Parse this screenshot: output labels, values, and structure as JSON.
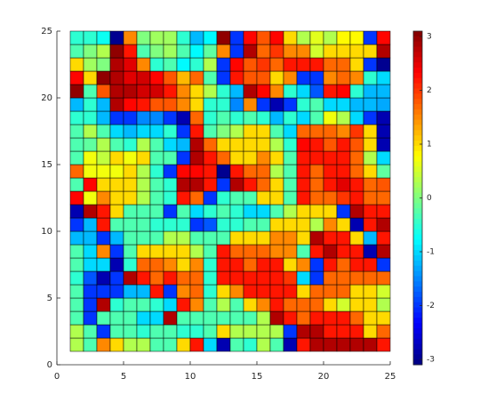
{
  "chart_data": {
    "type": "heatmap",
    "colormap": "jet",
    "edge_color": "#000000",
    "x": [
      1,
      2,
      3,
      4,
      5,
      6,
      7,
      8,
      9,
      10,
      11,
      12,
      13,
      14,
      15,
      16,
      17,
      18,
      19,
      20,
      21,
      22,
      23,
      24,
      25
    ],
    "y": [
      1,
      2,
      3,
      4,
      5,
      6,
      7,
      8,
      9,
      10,
      11,
      12,
      13,
      14,
      15,
      16,
      17,
      18,
      19,
      20,
      21,
      22,
      23,
      24,
      25
    ],
    "z": [
      [
        0.3,
        -0.3,
        1.5,
        1,
        0.3,
        0.3,
        -0.3,
        -0.3,
        1,
        2.2,
        -1,
        -2.8,
        -0.3,
        -0.5,
        0.3,
        -0.3,
        -2.8,
        2.2,
        2.8,
        2.8,
        2.8,
        2.8,
        2.8,
        2.2
      ],
      [
        0.3,
        -0.3,
        -2,
        -0.3,
        -0.3,
        -0.5,
        -0.3,
        -0.3,
        -0.5,
        -0.5,
        -0.3,
        1,
        0.3,
        0.3,
        0.3,
        0.3,
        -2,
        2.8,
        2.8,
        2.2,
        2.2,
        2.2,
        1,
        1.7
      ],
      [
        -0.3,
        -2,
        -0.3,
        -0.3,
        -0.3,
        -1,
        -1,
        2.8,
        -0.3,
        -0.3,
        -0.3,
        -0.3,
        -0.3,
        -0.3,
        0.3,
        2.8,
        2.2,
        1.7,
        2.2,
        2.2,
        2.2,
        1.7,
        1,
        1
      ],
      [
        -0.3,
        -2,
        2.8,
        -0.5,
        -0.3,
        -0.3,
        -0.5,
        -1,
        2.2,
        1.5,
        -0.3,
        0.3,
        -0.3,
        1,
        1.5,
        2.2,
        1.7,
        1.7,
        1.7,
        1,
        0.5,
        1,
        1,
        0.3
      ],
      [
        -0.3,
        -2,
        -2,
        -2,
        -1.2,
        -1.2,
        2.2,
        -2,
        1.5,
        1.7,
        -0.5,
        1,
        1.5,
        2.2,
        2.2,
        2.2,
        2.2,
        1,
        1.7,
        1.7,
        1.7,
        1,
        1,
        0.5
      ],
      [
        -0.5,
        -1.8,
        -2.8,
        -2,
        2.8,
        2.2,
        1.7,
        2.2,
        1.7,
        1.7,
        -0.5,
        2.2,
        2.2,
        2.2,
        2.2,
        2.2,
        2,
        -1,
        -2,
        1.7,
        1.7,
        1.7,
        1.7,
        1.7
      ],
      [
        -0.3,
        -1,
        -1,
        -2.8,
        -0.5,
        1.7,
        1.7,
        1.5,
        1,
        1.5,
        -0.5,
        2.2,
        2.2,
        1.7,
        2.2,
        2.2,
        1,
        1.5,
        -2,
        2.2,
        1.7,
        2.2,
        2.2,
        -2
      ],
      [
        -0.3,
        -1,
        1.5,
        -2,
        -0.3,
        1,
        1,
        1,
        1,
        0.3,
        -0.3,
        2.2,
        1.7,
        1.7,
        1.7,
        1.5,
        1.5,
        -0.3,
        2.2,
        2.8,
        2.2,
        2.2,
        -2.8,
        2.8
      ],
      [
        -1.2,
        -1.2,
        -2,
        -1.2,
        -0.3,
        -0.3,
        -0.3,
        0.3,
        0.3,
        -0.3,
        -0.3,
        -0.3,
        1,
        1,
        1,
        1.5,
        1.5,
        1,
        2.8,
        2.2,
        2.2,
        1,
        -1.2,
        2.2
      ],
      [
        -2,
        -1.2,
        2.2,
        -0.3,
        -0.3,
        -0.3,
        -0.5,
        -0.5,
        -0.5,
        -2,
        -1.8,
        -0.5,
        -0.5,
        -0.3,
        -0.3,
        1,
        1,
        1,
        0.3,
        1.5,
        1,
        -2.8,
        2.2,
        2.8
      ],
      [
        -2.8,
        2.8,
        2.2,
        1,
        -0.3,
        -0.3,
        -0.3,
        -2,
        -0.3,
        -1,
        -0.5,
        -0.3,
        -0.5,
        -1,
        -1,
        -0.3,
        0.3,
        1,
        1,
        1,
        -2,
        2.8,
        2.2,
        2.2
      ],
      [
        2.3,
        0.7,
        1.5,
        1,
        1,
        0.3,
        -0.3,
        -0.5,
        2.2,
        1.7,
        -2,
        -0.5,
        -0.3,
        -0.3,
        1,
        1,
        -0.3,
        2.2,
        1.7,
        1.7,
        2,
        2.2,
        1.7,
        1.7
      ],
      [
        -0.3,
        2.3,
        1,
        1,
        1,
        0.3,
        -0.3,
        -0.5,
        2.8,
        2.8,
        2.2,
        -2,
        2.8,
        2.2,
        1.7,
        1,
        -0.3,
        2.2,
        1.7,
        2.2,
        2.5,
        2.2,
        1.7,
        1.8
      ],
      [
        1.7,
        0.7,
        0.7,
        0.7,
        1,
        0.3,
        -0.5,
        -2,
        2.3,
        2.3,
        2.2,
        -3,
        2.2,
        1.7,
        1.7,
        0.3,
        -0.3,
        2.2,
        1.7,
        2.2,
        2.2,
        1.7,
        1,
        -0.2
      ],
      [
        -0.3,
        0.7,
        0.4,
        1,
        0.7,
        1,
        -0.3,
        -0.3,
        -2,
        2.8,
        2.2,
        1.7,
        1,
        1,
        1.5,
        1,
        -0.3,
        2.2,
        2.2,
        2.2,
        2.2,
        1.7,
        0.3,
        -1
      ],
      [
        -0.3,
        -0.2,
        0.3,
        -0.3,
        -0.5,
        0.3,
        -0.3,
        -1,
        -1.2,
        2.8,
        1.7,
        1,
        1,
        1,
        1,
        0.3,
        -0.5,
        2.3,
        2.2,
        1.8,
        2.2,
        1.8,
        1,
        -2.8
      ],
      [
        -0.3,
        0.3,
        -0.3,
        -1,
        -1.2,
        -1,
        -1,
        -0.5,
        -2,
        2.2,
        -0.3,
        0,
        0.3,
        1,
        1,
        -0.3,
        -1,
        1.7,
        1.7,
        1.7,
        1.5,
        2,
        1,
        -2.8
      ],
      [
        -0.5,
        -0.5,
        -1.2,
        -2,
        -2,
        -1.5,
        -1.5,
        -2,
        -2.8,
        1.7,
        -0.5,
        -0.3,
        -0.5,
        -0.3,
        -0.5,
        -1.2,
        -0.5,
        -1,
        -0.3,
        0.7,
        0.3,
        -1,
        -2,
        -2.8
      ],
      [
        -1.2,
        -0.5,
        -1.2,
        2.8,
        2.3,
        2.2,
        1.8,
        1.8,
        1.5,
        1,
        -0.5,
        -0.5,
        -1.5,
        1.5,
        -2,
        -2.8,
        -2,
        -0.5,
        -0.3,
        -1,
        -1,
        -1.2,
        -1.2,
        -1.3
      ],
      [
        3,
        -0.3,
        1.8,
        2.8,
        2.8,
        2.6,
        2.6,
        2.2,
        1.5,
        1,
        0.3,
        -0.5,
        -1.2,
        2.8,
        2.3,
        1.5,
        -0.5,
        -1,
        -1.8,
        2.2,
        2.3,
        -0.5,
        -1.2,
        -1.2
      ],
      [
        2.3,
        1,
        3,
        2.8,
        2.5,
        2.6,
        2.3,
        1.8,
        1.2,
        1.7,
        -0.3,
        -2,
        2.2,
        1.8,
        1.8,
        1,
        1.5,
        -2,
        -2,
        1.5,
        1.7,
        1.5,
        -0.5,
        -1
      ],
      [
        1,
        0.2,
        0,
        2.8,
        2.5,
        1.5,
        -0.5,
        -0.3,
        -0.8,
        -0.5,
        0.3,
        -2,
        2.3,
        1.8,
        2,
        1.7,
        2.2,
        2.2,
        2.2,
        1.7,
        1.7,
        1,
        -2,
        -3
      ],
      [
        -0.3,
        0,
        0.3,
        3,
        2.2,
        -0.3,
        0,
        0.2,
        -0.3,
        -0.8,
        -0.2,
        1.5,
        -2,
        2.8,
        1.7,
        2,
        1.5,
        1.5,
        0.5,
        1,
        1,
        1,
        1,
        2.8
      ],
      [
        -0.5,
        -0.5,
        -0.7,
        -3,
        1.5,
        0,
        0.2,
        0.2,
        -0.5,
        -1.2,
        -0.8,
        3,
        -2,
        2.3,
        1.8,
        2.3,
        1,
        0.3,
        0.6,
        0.3,
        0.8,
        0.8,
        -2,
        2.3
      ]
    ],
    "xlim": [
      0,
      25
    ],
    "xticks": [
      0,
      5,
      10,
      15,
      20,
      25
    ],
    "ylim": [
      0,
      25
    ],
    "yticks": [
      0,
      5,
      10,
      15,
      20,
      25
    ],
    "clim": [
      -3.1,
      3.1
    ],
    "cticks": [
      -3,
      -2,
      -1,
      0,
      1,
      2,
      3
    ]
  }
}
